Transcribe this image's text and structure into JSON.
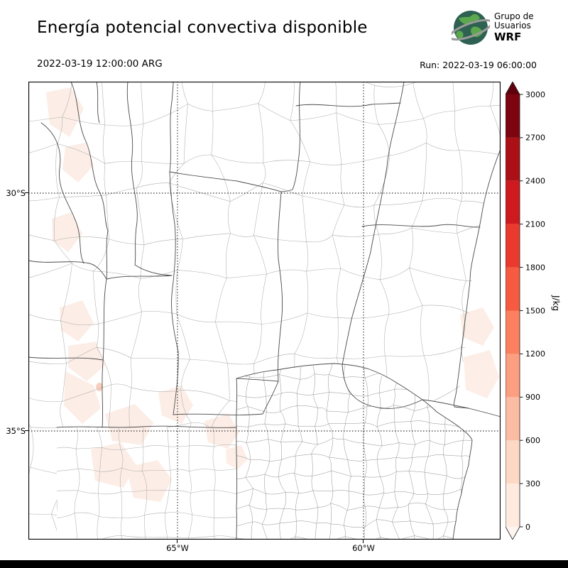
{
  "header": {
    "title": "Energía potencial convectiva disponible",
    "valid_time": "2022-03-19 12:00:00 ARG",
    "run_label": "Run: 2022-03-19 06:00:00",
    "logo": {
      "line1": "Grupo de",
      "line2": "Usuarios",
      "line3": "WRF"
    }
  },
  "axes": {
    "yticks": [
      "30°S",
      "35°S"
    ],
    "xticks": [
      "65°W",
      "60°W"
    ]
  },
  "colorbar": {
    "unit": "J/kg",
    "ticks": [
      0,
      300,
      600,
      900,
      1200,
      1500,
      1800,
      2100,
      2400,
      2700,
      3000
    ],
    "segment_colors": [
      "#feeadf",
      "#fdd8c4",
      "#fcbca4",
      "#fc9e80",
      "#fb8060",
      "#f65a41",
      "#ea3a2d",
      "#ce1a1e",
      "#ab1016",
      "#7c0510"
    ],
    "over_color": "#5f000c",
    "under_color": "#fff5f0"
  },
  "colors": {
    "cape_faint": "#fbe0d3",
    "cape_spot": "#f2a88e",
    "globe_ocean": "#2e6151",
    "globe_land": "#5ba84e",
    "globe_ring": "#9a9a9a"
  },
  "chart_data": {
    "type": "heatmap",
    "title": "Energía potencial convectiva disponible",
    "variable": "CAPE (convective available potential energy)",
    "unit": "J/kg",
    "valid_time": "2022-03-19 12:00:00 ARG",
    "run": "2022-03-19 06:00:00",
    "model": "WRF",
    "colorbar_ticks": [
      0,
      300,
      600,
      900,
      1200,
      1500,
      1800,
      2100,
      2400,
      2700,
      3000
    ],
    "colorbar_extend": "both",
    "lat_ticks_deg_S": [
      30,
      35
    ],
    "lon_ticks_deg_W": [
      65,
      60
    ],
    "approx_extent": {
      "west_deg_W": 69.0,
      "east_deg_W": 56.3,
      "north_deg_S": 27.7,
      "south_deg_S": 37.3
    },
    "graticule": "dotted",
    "field_summary": "CAPE mostly near 0 J/kg across central Argentina; scattered faint patches below ~300 J/kg over the northwest foothills, Cuyo/San Luis, southern Córdoba–La Pampa area and near the Uruguayan coast"
  }
}
